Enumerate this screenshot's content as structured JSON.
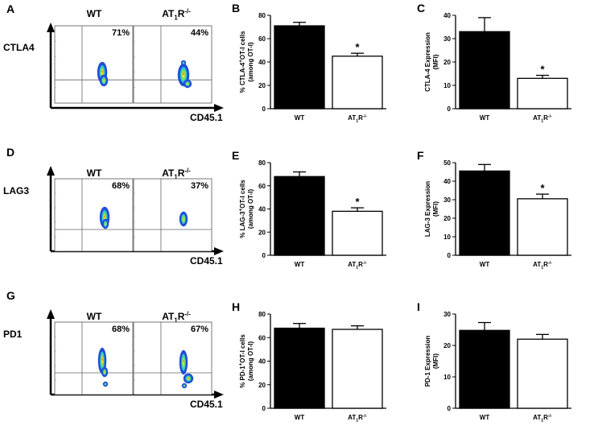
{
  "axis_labels": {
    "flow_x": "CD45.1",
    "wt": "WT",
    "ko_base": "AT",
    "ko_sub": "1",
    "ko_mid": "R",
    "ko_sup": "-/-"
  },
  "flow_rows": [
    {
      "panel_letter": "A",
      "marker": "CTLA4",
      "wt_percent": "71%",
      "ko_percent": "44%"
    },
    {
      "panel_letter": "D",
      "marker": "LAG3",
      "wt_percent": "68%",
      "ko_percent": "37%"
    },
    {
      "panel_letter": "G",
      "marker": "PD1",
      "wt_percent": "68%",
      "ko_percent": "67%"
    }
  ],
  "chart_data": [
    {
      "panel_letter": "B",
      "type": "bar",
      "categories": [
        "WT",
        "AT1R-/-"
      ],
      "values": [
        71,
        45
      ],
      "errors": [
        3,
        2.5
      ],
      "significance": [
        "",
        "*"
      ],
      "ylim": [
        0,
        80
      ],
      "yticks": [
        0,
        20,
        40,
        60,
        80
      ],
      "fills": [
        "#000000",
        "#ffffff"
      ],
      "ylabel_lines": [
        "% CTLA-4",
        "+",
        "OT-I cells",
        "(among OT-I)"
      ]
    },
    {
      "panel_letter": "C",
      "type": "bar",
      "categories": [
        "WT",
        "AT1R-/-"
      ],
      "values": [
        33,
        13
      ],
      "errors": [
        6,
        1.3
      ],
      "significance": [
        "",
        "*"
      ],
      "ylim": [
        0,
        40
      ],
      "yticks": [
        0,
        10,
        20,
        30,
        40
      ],
      "fills": [
        "#000000",
        "#ffffff"
      ],
      "ylabel_lines": [
        "CTLA-4 Expression",
        "(MFI)"
      ]
    },
    {
      "panel_letter": "E",
      "type": "bar",
      "categories": [
        "WT",
        "AT1R-/-"
      ],
      "values": [
        68,
        38
      ],
      "errors": [
        4,
        3
      ],
      "significance": [
        "",
        "*"
      ],
      "ylim": [
        0,
        80
      ],
      "yticks": [
        0,
        20,
        40,
        60,
        80
      ],
      "fills": [
        "#000000",
        "#ffffff"
      ],
      "ylabel_lines": [
        "% LAG-3",
        "+",
        "OT-I cells",
        "(among OT-I)"
      ]
    },
    {
      "panel_letter": "F",
      "type": "bar",
      "categories": [
        "WT",
        "AT1R-/-"
      ],
      "values": [
        45.5,
        30.5
      ],
      "errors": [
        3.5,
        2.5
      ],
      "significance": [
        "",
        "*"
      ],
      "ylim": [
        0,
        50
      ],
      "yticks": [
        0,
        10,
        20,
        30,
        40,
        50
      ],
      "fills": [
        "#000000",
        "#ffffff"
      ],
      "ylabel_lines": [
        "LAG-3  Expression",
        "(MFI)"
      ]
    },
    {
      "panel_letter": "H",
      "type": "bar",
      "categories": [
        "WT",
        "AT1R-/-"
      ],
      "values": [
        68,
        67
      ],
      "errors": [
        4,
        3
      ],
      "significance": [
        "",
        ""
      ],
      "ylim": [
        0,
        80
      ],
      "yticks": [
        0,
        20,
        40,
        60,
        80
      ],
      "fills": [
        "#000000",
        "#ffffff"
      ],
      "ylabel_lines": [
        "% PD-1",
        "+",
        "OT-I cells",
        "(among OT-I)"
      ]
    },
    {
      "panel_letter": "I",
      "type": "bar",
      "categories": [
        "WT",
        "AT1R-/-"
      ],
      "values": [
        24.8,
        22
      ],
      "errors": [
        2.5,
        1.5
      ],
      "significance": [
        "",
        ""
      ],
      "ylim": [
        0,
        30
      ],
      "yticks": [
        0,
        10,
        20,
        30
      ],
      "fills": [
        "#000000",
        "#ffffff"
      ],
      "ylabel_lines": [
        "PD-1 Expression",
        "(MFI)"
      ]
    }
  ]
}
